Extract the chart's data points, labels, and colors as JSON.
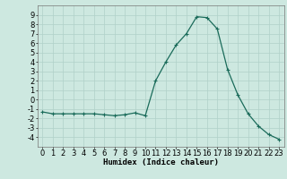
{
  "x": [
    0,
    1,
    2,
    3,
    4,
    5,
    6,
    7,
    8,
    9,
    10,
    11,
    12,
    13,
    14,
    15,
    16,
    17,
    18,
    19,
    20,
    21,
    22,
    23
  ],
  "y": [
    -1.3,
    -1.5,
    -1.5,
    -1.5,
    -1.5,
    -1.5,
    -1.6,
    -1.7,
    -1.6,
    -1.4,
    -1.7,
    2.0,
    4.0,
    5.8,
    7.0,
    8.8,
    8.7,
    7.5,
    3.2,
    0.5,
    -1.5,
    -2.8,
    -3.7,
    -4.2
  ],
  "line_color": "#1a6b5a",
  "marker": "+",
  "markersize": 3,
  "linewidth": 0.9,
  "bg_color": "#cde8e0",
  "grid_color": "#b0d0c8",
  "xlabel": "Humidex (Indice chaleur)",
  "xlabel_fontsize": 6.5,
  "tick_fontsize": 6,
  "xlim": [
    -0.5,
    23.5
  ],
  "ylim": [
    -5,
    10
  ],
  "yticks": [
    -4,
    -3,
    -2,
    -1,
    0,
    1,
    2,
    3,
    4,
    5,
    6,
    7,
    8,
    9
  ],
  "xticks": [
    0,
    1,
    2,
    3,
    4,
    5,
    6,
    7,
    8,
    9,
    10,
    11,
    12,
    13,
    14,
    15,
    16,
    17,
    18,
    19,
    20,
    21,
    22,
    23
  ]
}
